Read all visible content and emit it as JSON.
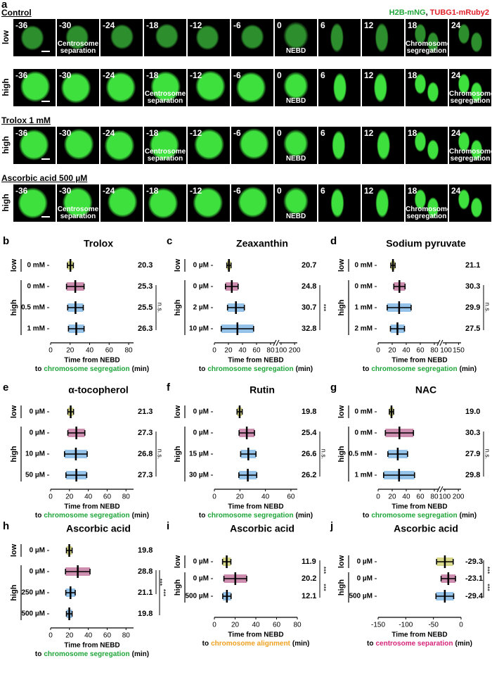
{
  "panel_a": {
    "label": "a",
    "legend": [
      {
        "text": "H2B-mNG",
        "color": "#1fa53a"
      },
      {
        "text": "TUBG1-mRuby2",
        "color": "#e0202a"
      }
    ],
    "legend_separator": ",",
    "timepoints": [
      -36,
      -30,
      -24,
      -18,
      -12,
      -6,
      0,
      6,
      12,
      18,
      24
    ],
    "rows": [
      {
        "heading": "Control",
        "level": "low",
        "annotations": [
          {
            "col": 1,
            "text": "Centrosome separation"
          },
          {
            "col": 6,
            "text": "NEBD"
          },
          {
            "col": 9,
            "text": "Chromosome segregation"
          }
        ]
      },
      {
        "heading": null,
        "level": "high",
        "annotations": [
          {
            "col": 3,
            "text": "Centrosome separation"
          },
          {
            "col": 6,
            "text": "NEBD"
          },
          {
            "col": 10,
            "text": "Chromosome segregation"
          }
        ]
      },
      {
        "heading": "Trolox 1 mM",
        "level": "high",
        "annotations": [
          {
            "col": 3,
            "text": "Centrosome separation"
          },
          {
            "col": 6,
            "text": "NEBD"
          },
          {
            "col": 10,
            "text": "Chromosome segregation"
          }
        ]
      },
      {
        "heading": "Ascorbic acid 500 µM",
        "level": "high",
        "annotations": [
          {
            "col": 1,
            "text": "Centrosome separation"
          },
          {
            "col": 6,
            "text": "NEBD"
          },
          {
            "col": 9,
            "text": "Chromosome segregation"
          }
        ]
      }
    ]
  },
  "chart_data": [
    {
      "type": "dot",
      "panel": "b",
      "title": "Trolox",
      "categories": [
        "0 mM",
        "0 mM",
        "0.5 mM",
        "1 mM"
      ],
      "levels": [
        "low",
        "high",
        "high",
        "high"
      ],
      "values": [
        20.3,
        25.3,
        25.5,
        26.3
      ],
      "errors": [
        3,
        9,
        8,
        8
      ],
      "colors": [
        "#b8b82c",
        "#a3306e",
        "#3c8fd6",
        "#3c8fd6"
      ],
      "xlim": [
        0,
        85
      ],
      "xticks": [
        0,
        20,
        40,
        60,
        80
      ],
      "xlabel": {
        "line1": "Time from NEBD",
        "prefix": "to",
        "event": "chromosome segregation",
        "event_color": "#1fa53a",
        "unit": "(min)"
      },
      "significance": [
        {
          "label": "n.s.",
          "from": 1,
          "to": 3
        }
      ]
    },
    {
      "type": "dot",
      "panel": "c",
      "title": "Zeaxanthin",
      "categories": [
        "0 µM",
        "0 µM",
        "2 µM",
        "10 µM"
      ],
      "levels": [
        "low",
        "high",
        "high",
        "high"
      ],
      "values": [
        20.7,
        24.8,
        30.7,
        32.8
      ],
      "errors": [
        3,
        9,
        12,
        23
      ],
      "colors": [
        "#b8b82c",
        "#a3306e",
        "#3c8fd6",
        "#3c8fd6"
      ],
      "xlim": [
        [
          0,
          85
        ],
        [
          90,
          220
        ]
      ],
      "xticks": [
        0,
        20,
        40,
        60,
        80,
        100,
        200
      ],
      "xlabel": {
        "line1": "Time from NEBD",
        "prefix": "to",
        "event": "chromosome segregation",
        "event_color": "#1fa53a",
        "unit": "(min)"
      },
      "significance": [
        {
          "label": "***",
          "from": 1,
          "to": 3
        }
      ]
    },
    {
      "type": "dot",
      "panel": "d",
      "title": "Sodium pyruvate",
      "categories": [
        "0 mM",
        "0 mM",
        "1 mM",
        "2 mM"
      ],
      "levels": [
        "low",
        "high",
        "high",
        "high"
      ],
      "values": [
        21.1,
        30.3,
        29.9,
        27.5
      ],
      "errors": [
        3,
        8,
        17,
        10
      ],
      "colors": [
        "#b8b82c",
        "#a3306e",
        "#3c8fd6",
        "#3c8fd6"
      ],
      "xlim": [
        [
          0,
          85
        ],
        [
          90,
          160
        ]
      ],
      "xticks": [
        0,
        20,
        40,
        60,
        80,
        100,
        150
      ],
      "xlabel": {
        "line1": "Time from NEBD",
        "prefix": "to",
        "event": "chromosome segregation",
        "event_color": "#1fa53a",
        "unit": "(min)"
      },
      "significance": [
        {
          "label": "n.s.",
          "from": 1,
          "to": 3
        }
      ]
    },
    {
      "type": "dot",
      "panel": "e",
      "title": "α-tocopherol",
      "categories": [
        "0 µM",
        "0 µM",
        "10 µM",
        "50 µM"
      ],
      "levels": [
        "low",
        "high",
        "high",
        "high"
      ],
      "values": [
        21.3,
        27.3,
        26.8,
        27.3
      ],
      "errors": [
        3,
        9,
        12,
        11
      ],
      "colors": [
        "#b8b82c",
        "#a3306e",
        "#3c8fd6",
        "#3c8fd6"
      ],
      "xlim": [
        0,
        88
      ],
      "xticks": [
        0,
        20,
        40,
        60,
        80
      ],
      "xlabel": {
        "line1": "Time from NEBD",
        "prefix": "to",
        "event": "chromosome segregation",
        "event_color": "#1fa53a",
        "unit": "(min)"
      },
      "significance": [
        {
          "label": "n.s.",
          "from": 1,
          "to": 3
        }
      ]
    },
    {
      "type": "dot",
      "panel": "f",
      "title": "Rutin",
      "categories": [
        "0 µM",
        "0 µM",
        "15 µM",
        "30 µM"
      ],
      "levels": [
        "low",
        "high",
        "high",
        "high"
      ],
      "values": [
        19.8,
        25.4,
        26.6,
        26.2
      ],
      "errors": [
        2,
        6,
        6,
        7
      ],
      "colors": [
        "#b8b82c",
        "#a3306e",
        "#3c8fd6",
        "#3c8fd6"
      ],
      "xlim": [
        0,
        65
      ],
      "xticks": [
        0,
        20,
        40,
        60
      ],
      "xlabel": {
        "line1": "Time from NEBD",
        "prefix": "to",
        "event": "chromosome segregation",
        "event_color": "#1fa53a",
        "unit": "(min)"
      },
      "significance": [
        {
          "label": "n.s.",
          "from": 1,
          "to": 3
        }
      ]
    },
    {
      "type": "dot",
      "panel": "g",
      "title": "NAC",
      "categories": [
        "0 mM",
        "0 mM",
        "0.5 mM",
        "1 mM"
      ],
      "levels": [
        "low",
        "high",
        "high",
        "high"
      ],
      "values": [
        19.0,
        30.3,
        27.9,
        29.8
      ],
      "value_labels": [
        "19.0",
        "30.3",
        "27.9",
        "29.8"
      ],
      "errors": [
        3,
        20,
        14,
        22
      ],
      "colors": [
        "#b8b82c",
        "#a3306e",
        "#3c8fd6",
        "#3c8fd6"
      ],
      "xlim": [
        [
          0,
          85
        ],
        [
          90,
          220
        ]
      ],
      "xticks": [
        0,
        20,
        40,
        60,
        80,
        100,
        200
      ],
      "xlabel": {
        "line1": "Time from NEBD",
        "prefix": "to",
        "event": "chromosome segregation",
        "event_color": "#1fa53a",
        "unit": "(min)"
      },
      "significance": [
        {
          "label": "n.s.",
          "from": 1,
          "to": 3
        }
      ]
    },
    {
      "type": "dot",
      "panel": "h",
      "title": "Ascorbic acid",
      "categories": [
        "0 µM",
        "0 µM",
        "250 µM",
        "500 µM"
      ],
      "levels": [
        "low",
        "high",
        "high",
        "high"
      ],
      "values": [
        19.8,
        28.8,
        21.1,
        19.8
      ],
      "errors": [
        3,
        13,
        5,
        3
      ],
      "colors": [
        "#b8b82c",
        "#a3306e",
        "#3c8fd6",
        "#3c8fd6"
      ],
      "xlim": [
        0,
        88
      ],
      "xticks": [
        0,
        20,
        40,
        60,
        80
      ],
      "xlabel": {
        "line1": "Time from NEBD",
        "prefix": "to",
        "event": "chromosome segregation",
        "event_color": "#1fa53a",
        "unit": "(min)"
      },
      "significance": [
        {
          "label": "***",
          "from": 1,
          "to": 2
        },
        {
          "label": "***",
          "from": 1,
          "to": 3
        }
      ]
    },
    {
      "type": "dot",
      "panel": "i",
      "title": "Ascorbic acid",
      "categories": [
        "0 µM",
        "0 µM",
        "500 µM"
      ],
      "levels": [
        "low",
        "high",
        "high"
      ],
      "values": [
        11.9,
        20.2,
        12.1
      ],
      "errors": [
        4,
        11,
        4
      ],
      "colors": [
        "#b8b82c",
        "#a3306e",
        "#3c8fd6"
      ],
      "xlim": [
        0,
        80
      ],
      "xticks": [
        0,
        20,
        40,
        60,
        80
      ],
      "xlabel": {
        "line1": "Time from NEBD",
        "prefix": "to",
        "event": "chromosome alignment",
        "event_color": "#f0a020",
        "unit": "(min)"
      },
      "significance": [
        {
          "label": "***",
          "from": 0,
          "to": 1
        },
        {
          "label": "***",
          "from": 1,
          "to": 2
        }
      ]
    },
    {
      "type": "dot",
      "panel": "j",
      "title": "Ascorbic acid",
      "categories": [
        "0 µM",
        "0 µM",
        "500 µM"
      ],
      "levels": [
        "low",
        "high",
        "high"
      ],
      "values": [
        -29.3,
        -23.1,
        -29.4
      ],
      "errors": [
        15,
        13,
        16
      ],
      "colors": [
        "#b8b82c",
        "#a3306e",
        "#3c8fd6"
      ],
      "xlim": [
        -150,
        0
      ],
      "xticks": [
        -150,
        -100,
        -50,
        0
      ],
      "xlabel": {
        "line1": "Time from NEBD",
        "prefix": "to",
        "event": "centrosome separation",
        "event_color": "#d6247a",
        "unit": "(min)"
      },
      "significance": [
        {
          "label": "***",
          "from": 0,
          "to": 1
        },
        {
          "label": "***",
          "from": 1,
          "to": 2
        }
      ]
    }
  ]
}
